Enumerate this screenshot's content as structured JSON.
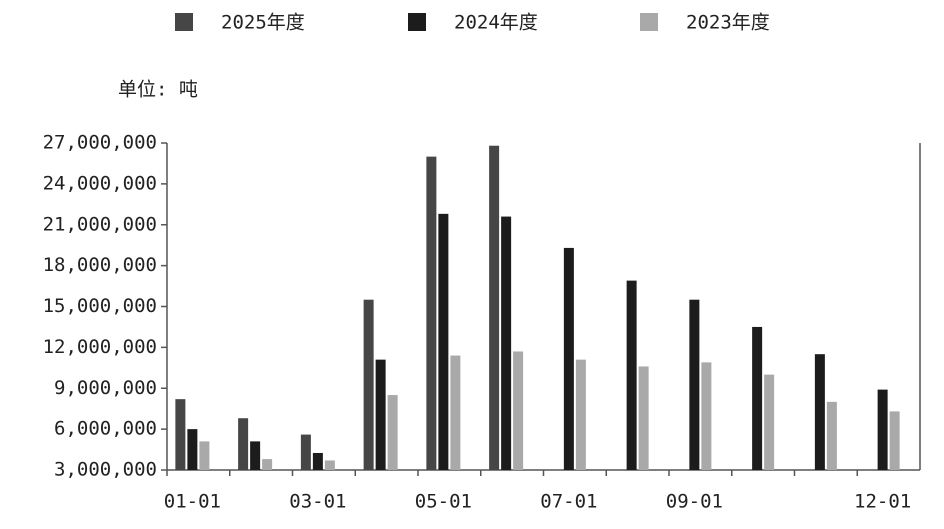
{
  "chart_data": {
    "type": "bar",
    "unit_label": "单位: 吨",
    "categories": [
      "01-01",
      null,
      "03-01",
      null,
      "05-01",
      null,
      "07-01",
      null,
      "09-01",
      null,
      null,
      "12-01"
    ],
    "series": [
      {
        "name": "2025年度",
        "color": "#464646",
        "values": [
          8200000,
          6800000,
          5600000,
          15500000,
          26000000,
          26800000,
          null,
          null,
          null,
          null,
          null,
          null
        ]
      },
      {
        "name": "2024年度",
        "color": "#1c1c1c",
        "values": [
          6000000,
          5100000,
          4250000,
          11100000,
          21800000,
          21600000,
          19300000,
          16900000,
          15500000,
          13500000,
          11500000,
          8900000
        ]
      },
      {
        "name": "2023年度",
        "color": "#a9a9a9",
        "values": [
          5100000,
          3800000,
          3700000,
          8500000,
          11400000,
          11700000,
          11100000,
          10600000,
          10900000,
          10000000,
          8000000,
          7300000
        ]
      }
    ],
    "ylim": [
      3000000,
      27000000
    ],
    "yticks": [
      {
        "value": 3000000,
        "label": "3,000,000"
      },
      {
        "value": 6000000,
        "label": "6,000,000"
      },
      {
        "value": 9000000,
        "label": "9,000,000"
      },
      {
        "value": 12000000,
        "label": "12,000,000"
      },
      {
        "value": 15000000,
        "label": "15,000,000"
      },
      {
        "value": 18000000,
        "label": "18,000,000"
      },
      {
        "value": 21000000,
        "label": "21,000,000"
      },
      {
        "value": 24000000,
        "label": "24,000,000"
      },
      {
        "value": 27000000,
        "label": "27,000,000"
      }
    ]
  }
}
